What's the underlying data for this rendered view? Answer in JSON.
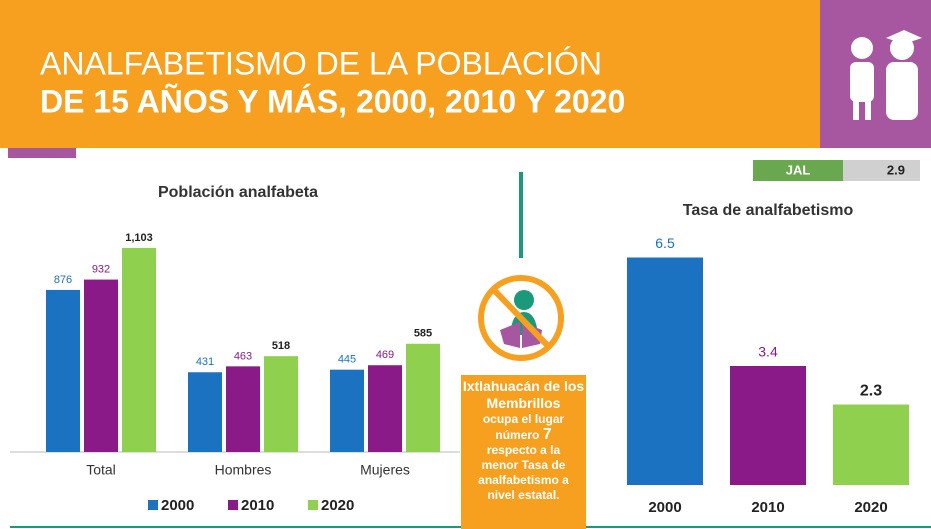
{
  "header": {
    "title_line1": "ANALFABETISMO DE LA POBLACIÓN",
    "title_line2": "DE 15 AÑOS Y MÁS, 2000, 2010 Y 2020"
  },
  "badge": {
    "label": "JAL",
    "value": 2.9
  },
  "callout": {
    "place": "Ixtlahuacán de los Membrillos",
    "line1": "ocupa el lugar",
    "line2": "número",
    "rank": 7,
    "line3": "respecto a la",
    "line4": "menor Tasa de",
    "line5": "analfabetismo a",
    "line6": "nivel estatal."
  },
  "chart_data": [
    {
      "type": "grouped_bar",
      "title": "Población analfabeta",
      "categories": [
        "Total",
        "Hombres",
        "Mujeres"
      ],
      "series": [
        {
          "name": "2000",
          "color": "#1a72c0",
          "values": [
            876,
            431,
            445
          ]
        },
        {
          "name": "2010",
          "color": "#8b1a89",
          "values": [
            932,
            463,
            469
          ]
        },
        {
          "name": "2020",
          "color": "#8fd14f",
          "values": [
            1103,
            518,
            585
          ],
          "value_labels": [
            "1,103",
            "518",
            "585"
          ]
        }
      ],
      "legend": "bottom"
    },
    {
      "type": "bar",
      "title": "Tasa de analfabetismo",
      "categories": [
        "2000",
        "2010",
        "2020"
      ],
      "values": [
        6.5,
        3.4,
        2.3
      ],
      "colors": [
        "#1a72c0",
        "#8b1a89",
        "#8fd14f"
      ]
    }
  ]
}
